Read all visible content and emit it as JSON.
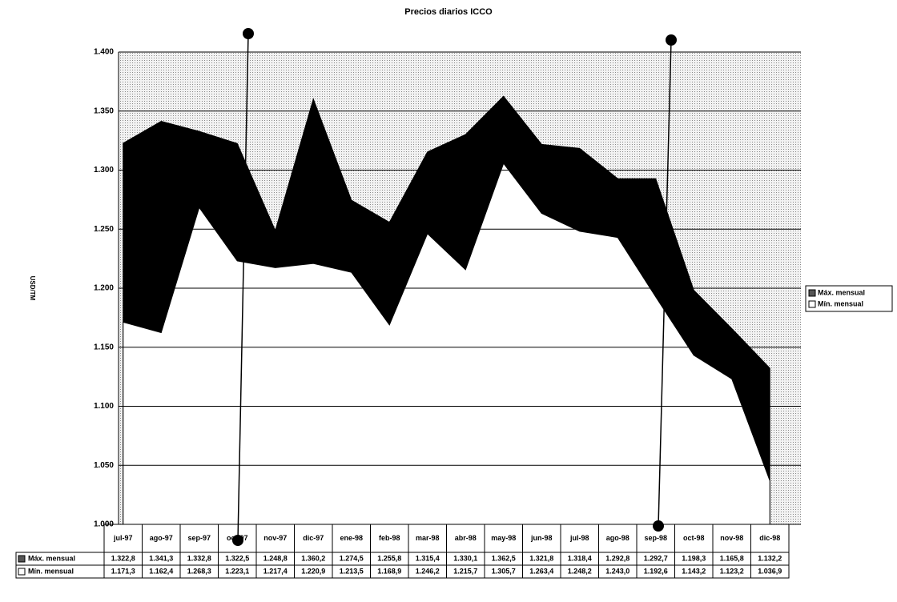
{
  "chart_data": {
    "type": "area",
    "title": "Precios diarios ICCO",
    "y_label": "USD/TM",
    "categories": [
      "jul-97",
      "ago-97",
      "sep-97",
      "oct-97",
      "nov-97",
      "dic-97",
      "ene-98",
      "feb-98",
      "mar-98",
      "abr-98",
      "may-98",
      "jun-98",
      "jul-98",
      "ago-98",
      "sep-98",
      "oct-98",
      "nov-98",
      "dic-98"
    ],
    "series": [
      {
        "name": "Máx. mensual",
        "color": "#000000",
        "values": [
          1322.8,
          1341.3,
          1332.8,
          1322.5,
          1248.8,
          1360.2,
          1274.5,
          1255.8,
          1315.4,
          1330.1,
          1362.5,
          1321.8,
          1318.4,
          1292.8,
          1292.7,
          1198.3,
          1165.8,
          1132.2
        ],
        "value_labels": [
          "1.322,8",
          "1.341,3",
          "1.332,8",
          "1.322,5",
          "1.248,8",
          "1.360,2",
          "1.274,5",
          "1.255,8",
          "1.315,4",
          "1.330,1",
          "1.362,5",
          "1.321,8",
          "1.318,4",
          "1.292,8",
          "1.292,7",
          "1.198,3",
          "1.165,8",
          "1.132,2"
        ]
      },
      {
        "name": "Mín. mensual",
        "color": "#ffffff",
        "values": [
          1171.3,
          1162.4,
          1268.3,
          1223.1,
          1217.4,
          1220.9,
          1213.5,
          1168.9,
          1246.2,
          1215.7,
          1305.7,
          1263.4,
          1248.2,
          1243.0,
          1192.6,
          1143.2,
          1123.2,
          1036.9
        ],
        "value_labels": [
          "1.171,3",
          "1.162,4",
          "1.268,3",
          "1.223,1",
          "1.217,4",
          "1.220,9",
          "1.213,5",
          "1.168,9",
          "1.246,2",
          "1.215,7",
          "1.305,7",
          "1.263,4",
          "1.248,2",
          "1.243,0",
          "1.192,6",
          "1.143,2",
          "1.123,2",
          "1.036,9"
        ]
      }
    ],
    "ylim": [
      1000,
      1400
    ],
    "yticks": [
      {
        "value": 1000,
        "label": "1.000"
      },
      {
        "value": 1050,
        "label": "1.050"
      },
      {
        "value": 1100,
        "label": "1.100"
      },
      {
        "value": 1150,
        "label": "1.150"
      },
      {
        "value": 1200,
        "label": "1.200"
      },
      {
        "value": 1250,
        "label": "1.250"
      },
      {
        "value": 1300,
        "label": "1.300"
      },
      {
        "value": 1350,
        "label": "1.350"
      },
      {
        "value": 1400,
        "label": "1.400"
      }
    ],
    "grid": true,
    "legend": "right"
  }
}
